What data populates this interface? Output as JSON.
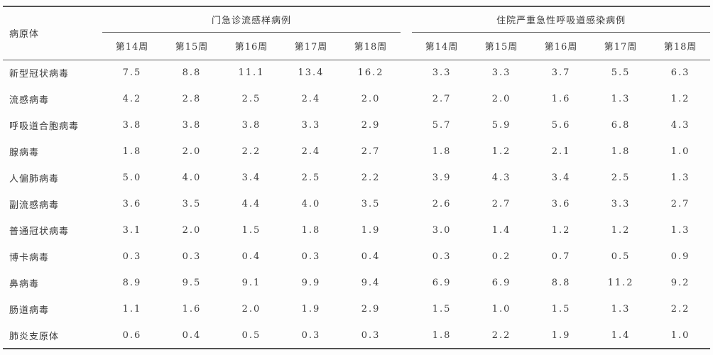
{
  "chart_data": {
    "type": "table",
    "pathogen_column_header": "病原体",
    "groups": [
      {
        "label": "门急诊流感样病例",
        "weeks": [
          "第14周",
          "第15周",
          "第16周",
          "第17周",
          "第18周"
        ]
      },
      {
        "label": "住院严重急性呼吸道感染病例",
        "weeks": [
          "第14周",
          "第15周",
          "第16周",
          "第17周",
          "第18周"
        ]
      }
    ],
    "rows": [
      {
        "pathogen": "新型冠状病毒",
        "outpatient_ili": [
          "7.5",
          "8.8",
          "11.1",
          "13.4",
          "16.2"
        ],
        "hospitalized_sari": [
          "3.3",
          "3.3",
          "3.7",
          "5.5",
          "6.3"
        ]
      },
      {
        "pathogen": "流感病毒",
        "outpatient_ili": [
          "4.2",
          "2.8",
          "2.5",
          "2.4",
          "2.0"
        ],
        "hospitalized_sari": [
          "2.7",
          "2.0",
          "1.6",
          "1.3",
          "1.2"
        ]
      },
      {
        "pathogen": "呼吸道合胞病毒",
        "outpatient_ili": [
          "3.8",
          "3.8",
          "3.8",
          "3.3",
          "2.9"
        ],
        "hospitalized_sari": [
          "5.7",
          "5.9",
          "5.6",
          "6.8",
          "4.3"
        ]
      },
      {
        "pathogen": "腺病毒",
        "outpatient_ili": [
          "1.8",
          "2.0",
          "2.2",
          "2.4",
          "2.7"
        ],
        "hospitalized_sari": [
          "1.8",
          "1.2",
          "2.1",
          "1.8",
          "1.0"
        ]
      },
      {
        "pathogen": "人偏肺病毒",
        "outpatient_ili": [
          "5.0",
          "4.0",
          "3.4",
          "2.5",
          "2.2"
        ],
        "hospitalized_sari": [
          "3.9",
          "4.3",
          "3.4",
          "2.5",
          "1.3"
        ]
      },
      {
        "pathogen": "副流感病毒",
        "outpatient_ili": [
          "3.6",
          "3.5",
          "4.4",
          "4.0",
          "3.5"
        ],
        "hospitalized_sari": [
          "2.6",
          "2.7",
          "3.6",
          "3.3",
          "2.7"
        ]
      },
      {
        "pathogen": "普通冠状病毒",
        "outpatient_ili": [
          "3.1",
          "2.0",
          "1.5",
          "1.8",
          "1.9"
        ],
        "hospitalized_sari": [
          "3.0",
          "1.4",
          "1.2",
          "1.2",
          "1.3"
        ]
      },
      {
        "pathogen": "博卡病毒",
        "outpatient_ili": [
          "0.3",
          "0.3",
          "0.4",
          "0.3",
          "0.4"
        ],
        "hospitalized_sari": [
          "0.3",
          "0.2",
          "0.7",
          "0.5",
          "0.9"
        ]
      },
      {
        "pathogen": "鼻病毒",
        "outpatient_ili": [
          "8.9",
          "9.5",
          "9.1",
          "9.9",
          "9.4"
        ],
        "hospitalized_sari": [
          "6.9",
          "6.9",
          "8.8",
          "11.2",
          "9.2"
        ]
      },
      {
        "pathogen": "肠道病毒",
        "outpatient_ili": [
          "1.1",
          "1.6",
          "2.0",
          "1.9",
          "2.9"
        ],
        "hospitalized_sari": [
          "1.5",
          "1.0",
          "1.5",
          "1.3",
          "2.2"
        ]
      },
      {
        "pathogen": "肺炎支原体",
        "outpatient_ili": [
          "0.6",
          "0.4",
          "0.5",
          "0.3",
          "0.3"
        ],
        "hospitalized_sari": [
          "1.8",
          "2.2",
          "1.9",
          "1.4",
          "1.0"
        ]
      }
    ],
    "colors": {
      "text": "#3c3c3c",
      "rule_heavy": "#515151",
      "rule_light": "#616161",
      "background": "#fdfdfd"
    }
  }
}
